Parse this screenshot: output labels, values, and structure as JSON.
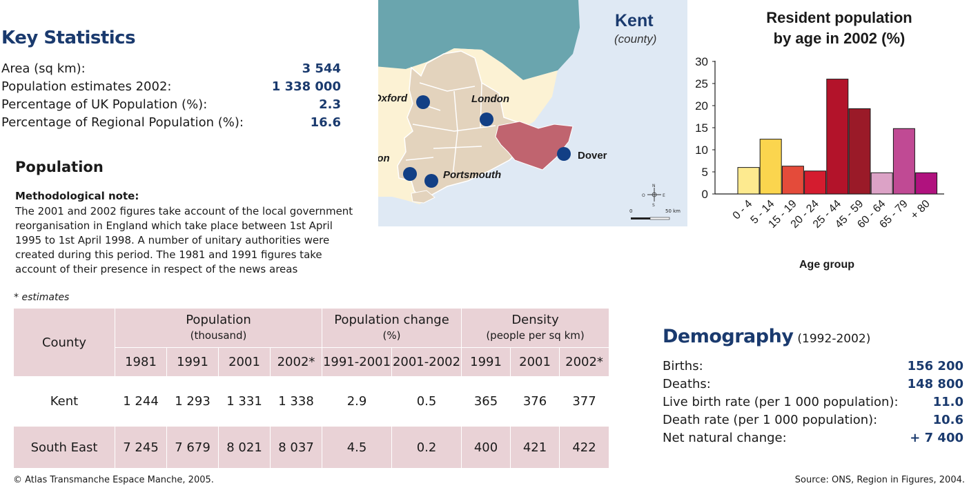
{
  "key_statistics": {
    "title": "Key Statistics",
    "rows": [
      {
        "label": "Area (sq km):",
        "value": "3 544"
      },
      {
        "label": "Population estimates 2002:",
        "value": "1 338 000"
      },
      {
        "label": "Percentage of UK Population (%):",
        "value": "2.3"
      },
      {
        "label": "Percentage of Regional Population (%):",
        "value": "16.6"
      }
    ]
  },
  "population": {
    "title": "Population",
    "note_title": "Methodological note:",
    "note_lines": [
      "The 2001 and 2002 figures take account of the local government",
      "reorganisation in England which take place between 1st April",
      "1995 to 1st April 1998. A number of unitary authorities were",
      "created during this period. The 1981 and 1991 figures take",
      "account of their presence in respect of the news areas"
    ],
    "estimates_note": "* estimates"
  },
  "map": {
    "title": "Kent",
    "subtitle": "(county)",
    "cities": [
      "Oxford",
      "London",
      "Southampton",
      "Portsmouth",
      "Dover"
    ],
    "compass": {
      "n": "N",
      "s": "S",
      "e": "E",
      "w": "O"
    },
    "scale": {
      "start": "0",
      "end": "50 km"
    },
    "colors": {
      "sea": "#dfe9f4",
      "north_land": "#6aa5ae",
      "region": "#e3d3bd",
      "outer_land": "#fcf2d4",
      "kent": "#c0646f",
      "city": "#123f85"
    }
  },
  "chart_data": {
    "type": "bar",
    "title": "Resident population by age in 2002 (%)",
    "title_lines": [
      "Resident population",
      "by age in 2002 (%)"
    ],
    "xlabel": "Age group",
    "ylabel": "",
    "ylim": [
      0,
      30
    ],
    "yticks": [
      "0",
      "5",
      "10",
      "15",
      "20",
      "25",
      "30"
    ],
    "categories": [
      "0 - 4",
      "5 - 14",
      "15 - 19",
      "20 - 24",
      "25 - 44",
      "45 - 59",
      "60 - 64",
      "65 - 79",
      "+ 80"
    ],
    "values": [
      6.0,
      12.4,
      6.3,
      5.2,
      26.0,
      19.3,
      4.8,
      14.8,
      4.8
    ],
    "colors": [
      "#fdea8f",
      "#fbd54e",
      "#e44b3a",
      "#d41c2f",
      "#b3132a",
      "#9a1a28",
      "#dca2c6",
      "#c04a94",
      "#b0127e"
    ],
    "grid": false
  },
  "table": {
    "county_header": "County",
    "groups": [
      {
        "title": "Population",
        "sub": "(thousand)"
      },
      {
        "title": "Population change",
        "sub": "(%)"
      },
      {
        "title": "Density",
        "sub": "(people per sq km)"
      }
    ],
    "years": [
      "1981",
      "1991",
      "2001",
      "2002*",
      "1991-2001",
      "2001-2002",
      "1991",
      "2001",
      "2002*"
    ],
    "rows": [
      {
        "county": "Kent",
        "values": [
          "1 244",
          "1 293",
          "1 331",
          "1 338",
          "2.9",
          "0.5",
          "365",
          "376",
          "377"
        ]
      },
      {
        "county": "South East",
        "values": [
          "7 245",
          "7 679",
          "8 021",
          "8 037",
          "4.5",
          "0.2",
          "400",
          "421",
          "422"
        ]
      }
    ]
  },
  "demography": {
    "title": "Demography",
    "period": "(1992-2002)",
    "rows": [
      {
        "label": "Births:",
        "value": "156 200"
      },
      {
        "label": "Deaths:",
        "value": "148 800"
      },
      {
        "label": "Live birth rate (per 1 000 population):",
        "value": "11.0"
      },
      {
        "label": "Death rate (per 1 000 population):",
        "value": "10.6"
      },
      {
        "label": "Net natural change:",
        "value": "+ 7 400"
      }
    ]
  },
  "footer": {
    "copyright": "© Atlas Transmanche Espace Manche, 2005.",
    "source": "Source: ONS, Region in Figures, 2004."
  }
}
